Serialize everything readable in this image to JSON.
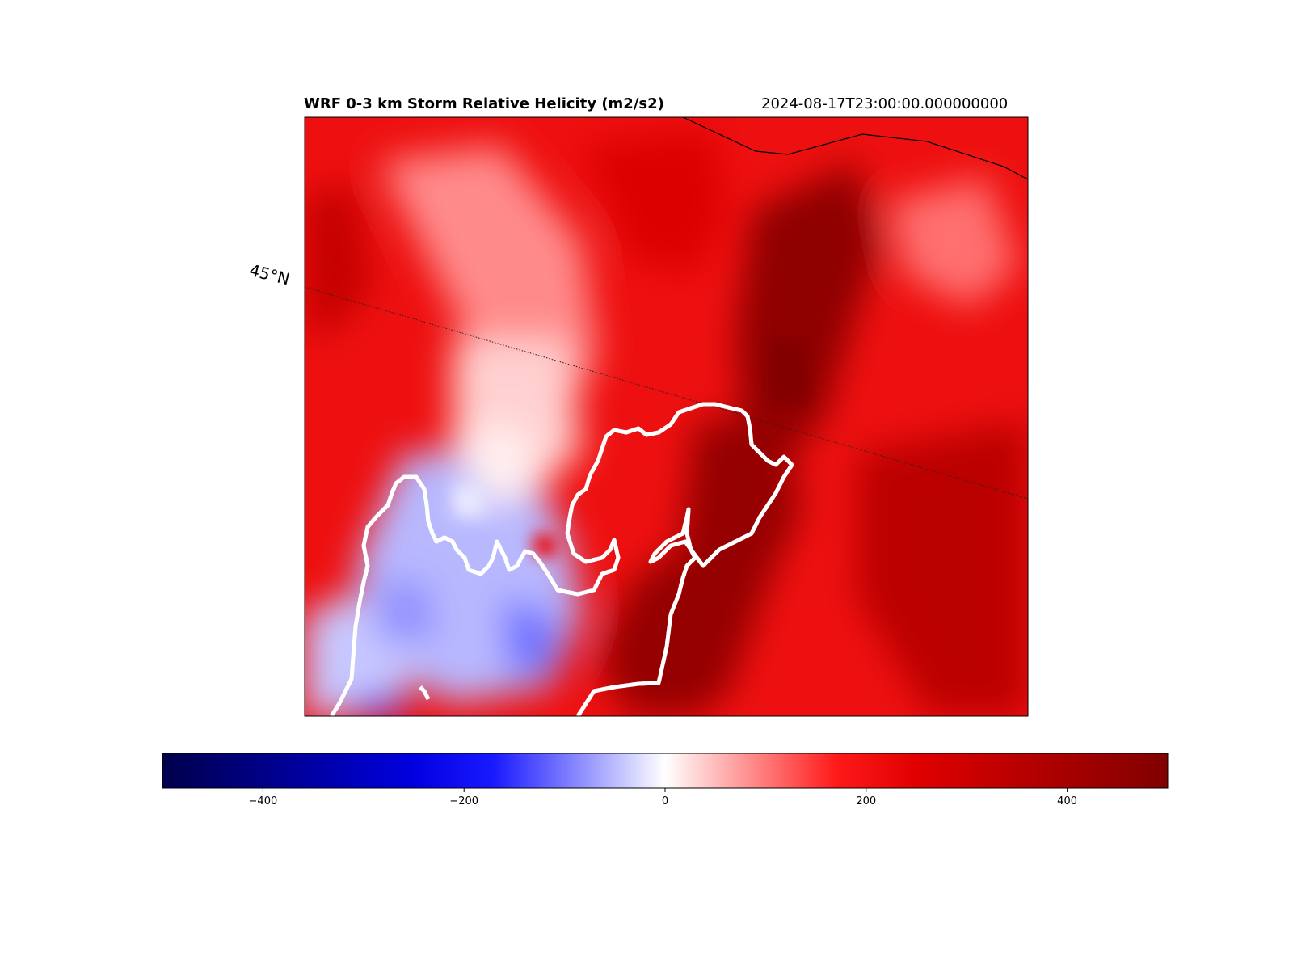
{
  "header": {
    "title": "WRF 0-3 km Storm Relative Helicity (m2/s2)",
    "valid_time": "2024-08-17T23:00:00.000000000"
  },
  "map": {
    "latitude_label": "45°N",
    "features": [
      "coastline",
      "state-border-dashed",
      "latitude-gridline"
    ]
  },
  "colorbar": {
    "colormap": "seismic",
    "range": [
      -500,
      500
    ],
    "ticks": [
      "−400",
      "−200",
      "0",
      "200",
      "400"
    ],
    "tick_values": [
      -400,
      -200,
      0,
      200,
      400
    ],
    "colors": {
      "min": "#00004c",
      "neg": "#0000ff",
      "zero": "#ffffff",
      "pos": "#ff0000",
      "max": "#800000"
    }
  }
}
